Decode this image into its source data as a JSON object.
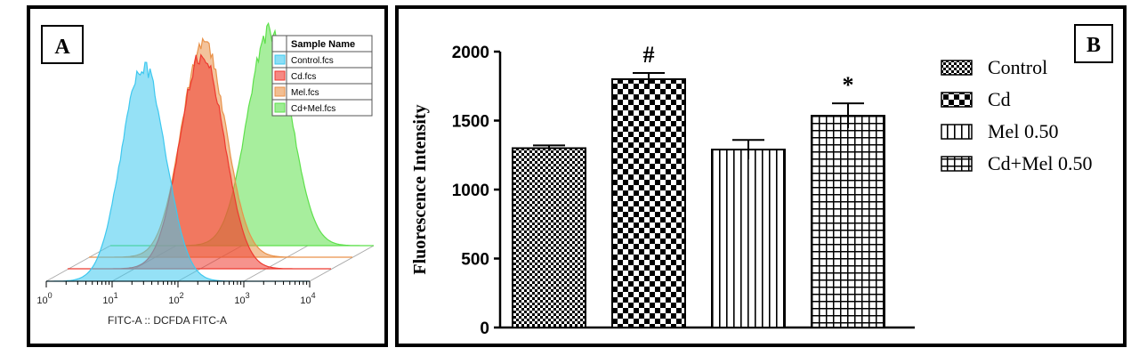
{
  "panel_a": {
    "label": "A",
    "legend_title": "Sample Name",
    "legend_items": [
      {
        "name": "Control.fcs",
        "color": "#3ec8ef"
      },
      {
        "name": "Cd.fcs",
        "color": "#ee3a30"
      },
      {
        "name": "Mel.fcs",
        "color": "#e9924a"
      },
      {
        "name": "Cd+Mel.fcs",
        "color": "#5ee04c"
      }
    ],
    "x_axis_label": "FITC-A :: DCFDA FITC-A",
    "x_ticks": [
      {
        "base": "10",
        "exp": "0"
      },
      {
        "base": "10",
        "exp": "1"
      },
      {
        "base": "10",
        "exp": "2"
      },
      {
        "base": "10",
        "exp": "3"
      },
      {
        "base": "10",
        "exp": "4"
      }
    ]
  },
  "panel_b": {
    "label": "B"
  },
  "chart_data": [
    {
      "type": "area",
      "title": "",
      "xlabel": "FITC-A :: DCFDA FITC-A",
      "ylabel": "",
      "x_scale": "log",
      "xlim": [
        1,
        10000
      ],
      "series": [
        {
          "name": "Control.fcs",
          "peak_x": 30,
          "color": "#3ec8ef"
        },
        {
          "name": "Cd.fcs",
          "peak_x": 110,
          "color": "#ee3a30"
        },
        {
          "name": "Mel.fcs",
          "peak_x": 55,
          "color": "#e9924a"
        },
        {
          "name": "Cd+Mel.fcs",
          "peak_x": 260,
          "color": "#5ee04c"
        }
      ]
    },
    {
      "type": "bar",
      "title": "",
      "xlabel": "",
      "ylabel": "Fluorescence Intensity",
      "ylim": [
        0,
        2000
      ],
      "yticks": [
        "0",
        "500",
        "1000",
        "1500",
        "2000"
      ],
      "categories": [
        "Control",
        "Cd",
        "Mel 0.50",
        "Cd+Mel 0.50"
      ],
      "values": [
        1300,
        1800,
        1290,
        1535
      ],
      "errors": [
        20,
        45,
        70,
        90
      ],
      "annotations": [
        "",
        "#",
        "",
        "*"
      ],
      "legend_position": "right",
      "patterns": [
        "fine-check",
        "large-check",
        "vertical-lines",
        "grid"
      ]
    }
  ]
}
